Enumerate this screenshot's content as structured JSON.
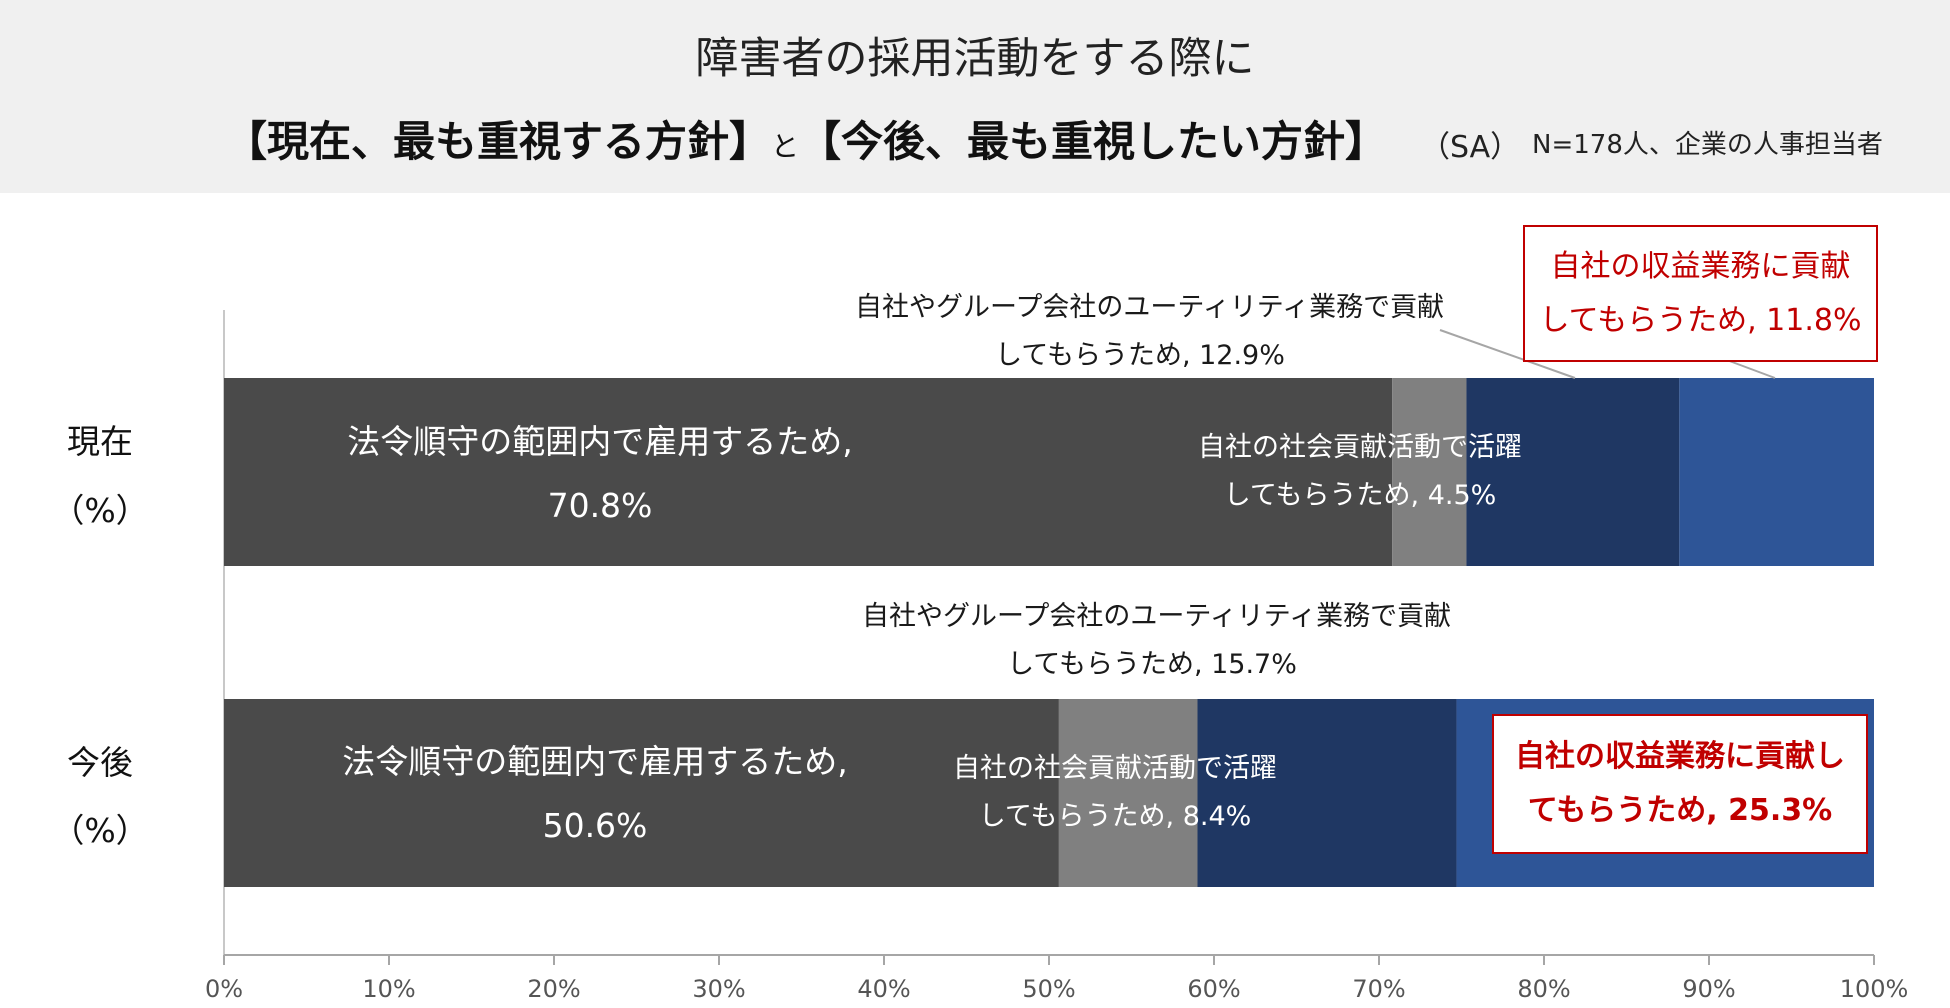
{
  "header": {
    "title_line1": "障害者の採用活動をする際に",
    "title_line2_a": "【現在、最も重視する方針】",
    "title_line2_to": "と",
    "title_line2_b": "【今後、最も重視したい方針】",
    "sa": "（SA）",
    "note": "N=178人、企業の人事担当者"
  },
  "colors": [
    "#4a4a4a",
    "#808080",
    "#1f3763",
    "#2e5597"
  ],
  "chart_data": {
    "type": "bar",
    "orientation": "horizontal",
    "stacked": true,
    "categories": [
      "現在",
      "今後"
    ],
    "category_units": [
      "（%）",
      "（%）"
    ],
    "series": [
      {
        "name": "法令順守の範囲内で雇用するため",
        "values": [
          70.8,
          50.6
        ]
      },
      {
        "name": "自社の社会貢献活動で活躍してもらうため",
        "values": [
          4.5,
          8.4
        ]
      },
      {
        "name": "自社やグループ会社のユーティリティ業務で貢献してもらうため",
        "values": [
          12.9,
          15.7
        ]
      },
      {
        "name": "自社の収益業務に貢献してもらうため",
        "values": [
          11.8,
          25.3
        ]
      }
    ],
    "xlim": [
      0,
      100
    ],
    "xticks": [
      "0%",
      "10%",
      "20%",
      "30%",
      "40%",
      "50%",
      "60%",
      "70%",
      "80%",
      "90%",
      "100%"
    ],
    "labels": {
      "now_s1_a": "法令順守の範囲内で雇用するため,",
      "now_s1_b": "70.8%",
      "now_s2_a": "自社の社会貢献活動で活躍",
      "now_s2_b": "してもらうため, 4.5%",
      "now_s3_a": "自社やグループ会社のユーティリティ業務で貢献",
      "now_s3_b": "してもらうため, 12.9%",
      "now_s4_a": "自社の収益業務に貢献",
      "now_s4_b": "してもらうため, 11.8%",
      "fut_s1_a": "法令順守の範囲内で雇用するため,",
      "fut_s1_b": "50.6%",
      "fut_s2_a": "自社の社会貢献活動で活躍",
      "fut_s2_b": "してもらうため, 8.4%",
      "fut_s3_a": "自社やグループ会社のユーティリティ業務で貢献",
      "fut_s3_b": "してもらうため, 15.7%",
      "fut_s4_a": "自社の収益業務に貢献し",
      "fut_s4_b": "てもらうため, 25.3%"
    }
  }
}
